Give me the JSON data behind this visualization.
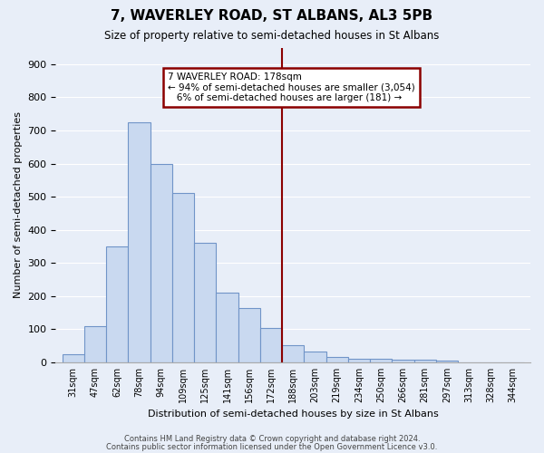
{
  "title": "7, WAVERLEY ROAD, ST ALBANS, AL3 5PB",
  "subtitle": "Size of property relative to semi-detached houses in St Albans",
  "xlabel": "Distribution of semi-detached houses by size in St Albans",
  "ylabel": "Number of semi-detached properties",
  "bar_labels": [
    "31sqm",
    "47sqm",
    "62sqm",
    "78sqm",
    "94sqm",
    "109sqm",
    "125sqm",
    "141sqm",
    "156sqm",
    "172sqm",
    "188sqm",
    "203sqm",
    "219sqm",
    "234sqm",
    "250sqm",
    "266sqm",
    "281sqm",
    "297sqm",
    "313sqm",
    "328sqm",
    "344sqm"
  ],
  "bar_heights": [
    25,
    108,
    350,
    725,
    598,
    512,
    360,
    210,
    163,
    105,
    52,
    32,
    17,
    10,
    10,
    9,
    7,
    5,
    0,
    0,
    0
  ],
  "bar_color": "#c9d9f0",
  "bar_edge_color": "#7094c8",
  "vline_pos": 10.0,
  "vline_color": "#8b0000",
  "annotation_line1": "7 WAVERLEY ROAD: 178sqm",
  "annotation_line2": "← 94% of semi-detached houses are smaller (3,054)",
  "annotation_line3": "6% of semi-detached houses are larger (181) →",
  "annotation_box_color": "#8b0000",
  "ylim": [
    0,
    950
  ],
  "yticks": [
    0,
    100,
    200,
    300,
    400,
    500,
    600,
    700,
    800,
    900
  ],
  "footer1": "Contains HM Land Registry data © Crown copyright and database right 2024.",
  "footer2": "Contains public sector information licensed under the Open Government Licence v3.0.",
  "bg_color": "#e8eef8",
  "plot_bg_color": "#e8eef8"
}
